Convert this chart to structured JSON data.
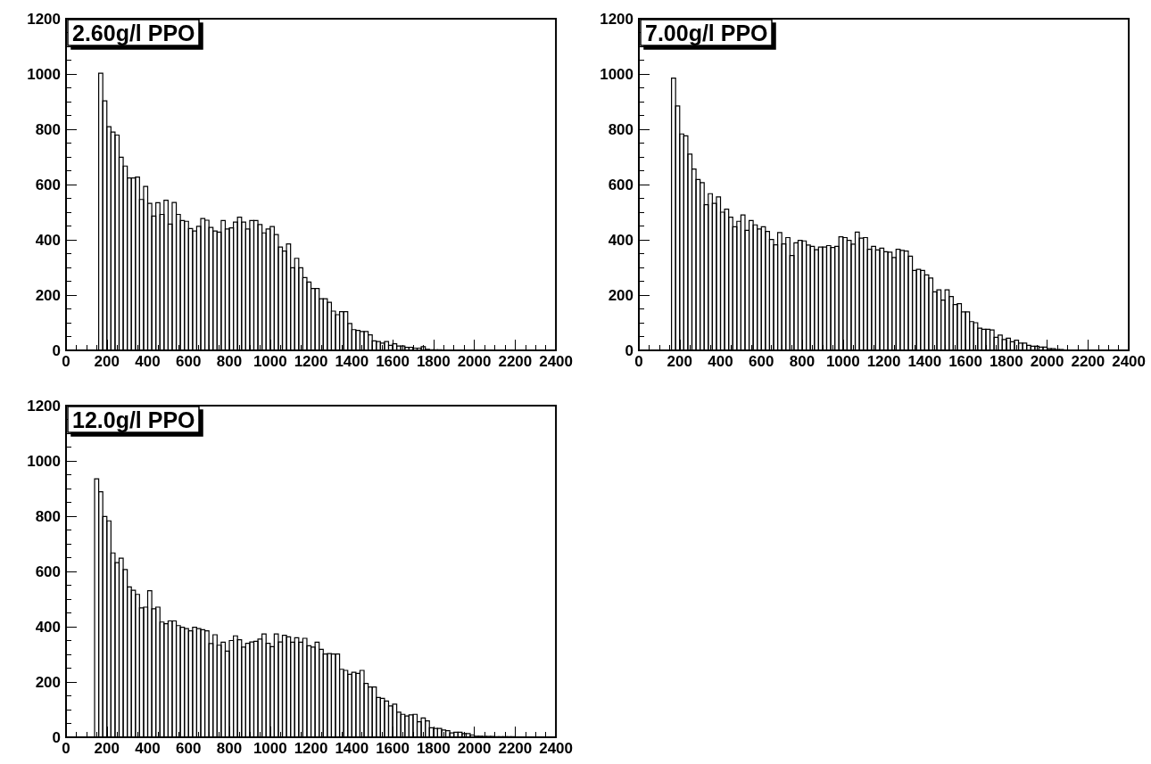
{
  "chart_data": [
    {
      "type": "histogram",
      "title": "2.60g/l PPO",
      "color": "#000000",
      "xlim": [
        0,
        2400
      ],
      "ylim": [
        0,
        1200
      ],
      "xticks": [
        0,
        200,
        400,
        600,
        800,
        1000,
        1200,
        1400,
        1600,
        1800,
        2000,
        2200,
        2400
      ],
      "yticks": [
        0,
        200,
        400,
        600,
        800,
        1000,
        1200
      ],
      "grid": false,
      "bins": [
        160,
        180,
        200,
        220,
        240,
        260,
        280,
        300,
        320,
        340,
        360,
        380,
        400,
        420,
        440,
        460,
        480,
        500,
        520,
        540,
        560,
        580,
        600,
        620,
        640,
        660,
        680,
        700,
        720,
        740,
        760,
        780,
        800,
        820,
        840,
        860,
        880,
        900,
        920,
        940,
        960,
        980,
        1000,
        1020,
        1040,
        1060,
        1080,
        1100,
        1120,
        1140,
        1160,
        1180,
        1200,
        1220,
        1240,
        1260,
        1280,
        1300,
        1320,
        1340,
        1360,
        1380,
        1400,
        1420,
        1440,
        1460,
        1480,
        1500,
        1520,
        1540,
        1560,
        1580,
        1600,
        1620,
        1640,
        1660,
        1680,
        1700,
        1720,
        1740,
        1760,
        1780,
        1800,
        1820,
        1840,
        1860,
        1880,
        1900
      ],
      "values": [
        1003,
        903,
        809,
        790,
        779,
        699,
        667,
        624,
        624,
        627,
        546,
        593,
        532,
        486,
        534,
        492,
        543,
        457,
        535,
        492,
        470,
        467,
        441,
        432,
        449,
        477,
        471,
        445,
        432,
        428,
        470,
        439,
        443,
        464,
        482,
        464,
        439,
        470,
        470,
        455,
        425,
        439,
        448,
        419,
        374,
        359,
        385,
        299,
        333,
        299,
        263,
        247,
        224,
        224,
        187,
        187,
        174,
        142,
        129,
        140,
        140,
        97,
        75,
        72,
        68,
        68,
        56,
        34,
        32,
        26,
        32,
        18,
        24,
        16,
        16,
        11,
        11,
        8,
        8,
        13,
        4,
        2,
        2,
        2,
        1,
        1,
        1
      ]
    },
    {
      "type": "histogram",
      "title": "7.00g/l PPO",
      "color": "#000000",
      "xlim": [
        0,
        2400
      ],
      "ylim": [
        0,
        1200
      ],
      "xticks": [
        0,
        200,
        400,
        600,
        800,
        1000,
        1200,
        1400,
        1600,
        1800,
        2000,
        2200,
        2400
      ],
      "yticks": [
        0,
        200,
        400,
        600,
        800,
        1000,
        1200
      ],
      "grid": false,
      "bins": [
        160,
        180,
        200,
        220,
        240,
        260,
        280,
        300,
        320,
        340,
        360,
        380,
        400,
        420,
        440,
        460,
        480,
        500,
        520,
        540,
        560,
        580,
        600,
        620,
        640,
        660,
        680,
        700,
        720,
        740,
        760,
        780,
        800,
        820,
        840,
        860,
        880,
        900,
        920,
        940,
        960,
        980,
        1000,
        1020,
        1040,
        1060,
        1080,
        1100,
        1120,
        1140,
        1160,
        1180,
        1200,
        1220,
        1240,
        1260,
        1280,
        1300,
        1320,
        1340,
        1360,
        1380,
        1400,
        1420,
        1440,
        1460,
        1480,
        1500,
        1520,
        1540,
        1560,
        1580,
        1600,
        1620,
        1640,
        1660,
        1680,
        1700,
        1720,
        1740,
        1760,
        1780,
        1800,
        1820,
        1840,
        1860,
        1880,
        1900,
        1920,
        1940,
        1960,
        1980,
        2000,
        2020,
        2040,
        2060,
        2080,
        2100,
        2120
      ],
      "values": [
        985,
        884,
        783,
        776,
        710,
        656,
        618,
        607,
        527,
        567,
        532,
        555,
        500,
        511,
        482,
        447,
        467,
        490,
        434,
        470,
        454,
        439,
        447,
        430,
        401,
        382,
        426,
        385,
        408,
        343,
        389,
        398,
        396,
        381,
        376,
        364,
        374,
        374,
        379,
        372,
        376,
        411,
        408,
        398,
        384,
        428,
        406,
        408,
        366,
        376,
        363,
        370,
        357,
        355,
        336,
        366,
        362,
        359,
        341,
        289,
        293,
        289,
        273,
        262,
        212,
        219,
        182,
        219,
        195,
        166,
        169,
        139,
        139,
        104,
        100,
        80,
        76,
        76,
        74,
        47,
        55,
        39,
        44,
        31,
        37,
        26,
        26,
        18,
        15,
        15,
        12,
        12,
        6,
        6,
        3,
        3,
        1,
        1
      ]
    },
    {
      "type": "histogram",
      "title": "12.0g/l PPO",
      "color": "#000000",
      "xlim": [
        0,
        2400
      ],
      "ylim": [
        0,
        1200
      ],
      "xticks": [
        0,
        200,
        400,
        600,
        800,
        1000,
        1200,
        1400,
        1600,
        1800,
        2000,
        2200,
        2400
      ],
      "yticks": [
        0,
        200,
        400,
        600,
        800,
        1000,
        1200
      ],
      "grid": false,
      "bins": [
        140,
        160,
        180,
        200,
        220,
        240,
        260,
        280,
        300,
        320,
        340,
        360,
        380,
        400,
        420,
        440,
        460,
        480,
        500,
        520,
        540,
        560,
        580,
        600,
        620,
        640,
        660,
        680,
        700,
        720,
        740,
        760,
        780,
        800,
        820,
        840,
        860,
        880,
        900,
        920,
        940,
        960,
        980,
        1000,
        1020,
        1040,
        1060,
        1080,
        1100,
        1120,
        1140,
        1160,
        1180,
        1200,
        1220,
        1240,
        1260,
        1280,
        1300,
        1320,
        1340,
        1360,
        1380,
        1400,
        1420,
        1440,
        1460,
        1480,
        1500,
        1520,
        1540,
        1560,
        1580,
        1600,
        1620,
        1640,
        1660,
        1680,
        1700,
        1720,
        1740,
        1760,
        1780,
        1800,
        1820,
        1840,
        1860,
        1880,
        1900,
        1920,
        1940,
        1960,
        1980,
        2000,
        2020,
        2040,
        2060,
        2080,
        2100,
        2120,
        2140,
        2160,
        2180,
        2200
      ],
      "values": [
        935,
        888,
        799,
        783,
        667,
        632,
        648,
        607,
        544,
        532,
        517,
        468,
        471,
        530,
        465,
        471,
        417,
        411,
        421,
        421,
        404,
        398,
        393,
        385,
        398,
        393,
        389,
        385,
        339,
        371,
        333,
        344,
        312,
        350,
        367,
        353,
        326,
        340,
        345,
        347,
        355,
        374,
        340,
        328,
        374,
        345,
        369,
        363,
        344,
        360,
        344,
        358,
        331,
        326,
        344,
        318,
        301,
        303,
        301,
        301,
        246,
        242,
        228,
        235,
        231,
        242,
        195,
        182,
        182,
        144,
        141,
        131,
        113,
        120,
        91,
        83,
        77,
        81,
        83,
        56,
        70,
        59,
        34,
        32,
        32,
        26,
        24,
        16,
        18,
        18,
        13,
        13,
        8,
        4,
        4,
        3,
        3,
        3,
        2,
        2,
        2,
        2,
        2
      ]
    }
  ]
}
